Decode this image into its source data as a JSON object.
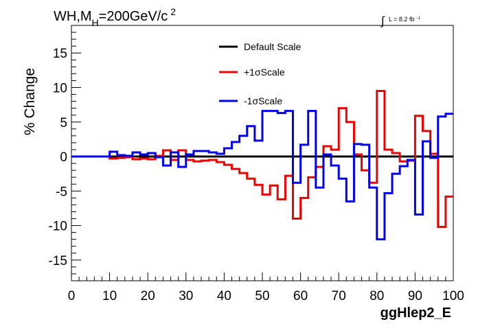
{
  "chart_data": {
    "type": "line",
    "title": "WH,M",
    "title_sub": "H",
    "title_rest": "=200GeV/c",
    "title_sup": "2",
    "lumi_integral": "∫",
    "lumi_label": "L = 8.2 fb",
    "lumi_sup": "-1",
    "xlabel": "ggHlep2_E",
    "ylabel": "% Change",
    "xlim": [
      0,
      100
    ],
    "ylim": [
      -18,
      19
    ],
    "x_ticks": [
      0,
      10,
      20,
      30,
      40,
      50,
      60,
      70,
      80,
      90,
      100
    ],
    "y_ticks": [
      -15,
      -10,
      -5,
      0,
      5,
      10,
      15
    ],
    "bin_width": 2,
    "legend_position": "top-center",
    "series": [
      {
        "name": "Default Scale",
        "color": "#000000",
        "values": [
          0,
          0,
          0,
          0,
          0,
          0,
          0,
          0,
          0,
          0,
          0,
          0,
          0,
          0,
          0,
          0,
          0,
          0,
          0,
          0,
          0,
          0,
          0,
          0,
          0,
          0,
          0,
          0,
          0,
          0,
          0,
          0,
          0,
          0,
          0,
          0,
          0,
          0,
          0,
          0,
          0,
          0,
          0,
          0,
          0,
          0,
          0,
          0,
          0,
          0
        ]
      },
      {
        "name": "+1σScale",
        "color": "#ee0000",
        "values": [
          0,
          0,
          0,
          0,
          0,
          -0.3,
          -0.2,
          -0.1,
          -0.4,
          -0.3,
          -0.4,
          0.1,
          0.9,
          -0.5,
          0.9,
          -0.5,
          -0.7,
          -0.6,
          -0.5,
          -0.8,
          -1.2,
          -1.8,
          -2.4,
          -3.2,
          -4.1,
          -5.5,
          -4.2,
          -6.2,
          -2.8,
          -9,
          -6,
          -3,
          -1.5,
          1.5,
          1,
          7,
          5,
          0.3,
          -2,
          -3.8,
          9.5,
          1,
          0.5,
          -0.7,
          -0.6,
          5.9,
          3.7,
          0.4,
          -10.2,
          -5.8
        ]
      },
      {
        "name": "-1σScale",
        "color": "#0000ee",
        "values": [
          0,
          0,
          0,
          0,
          0,
          0.7,
          0.2,
          0.1,
          0.6,
          0.3,
          0.5,
          -0.1,
          -1.3,
          0.6,
          -1.5,
          0.3,
          0.8,
          0.8,
          0.6,
          0.4,
          1.2,
          2.1,
          3,
          4.4,
          2.3,
          6.6,
          6.6,
          6.3,
          6.6,
          -3.8,
          1.7,
          6.6,
          -4.5,
          0.3,
          -1.3,
          -3.2,
          -6.5,
          1.8,
          1.7,
          -4.5,
          -12,
          -5.3,
          -2.5,
          -1.4,
          -0.5,
          -8.4,
          2.2,
          -0.2,
          5.8,
          6.2
        ]
      }
    ]
  }
}
